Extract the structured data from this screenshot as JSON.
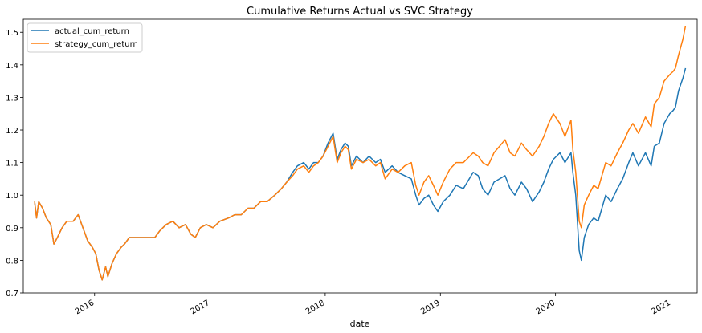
{
  "chart_data": {
    "type": "line",
    "title": "Cumulative Returns Actual vs SVC Strategy",
    "xlabel": "date",
    "ylabel": "",
    "xlim": [
      "2015-05-20",
      "2021-03-25"
    ],
    "ylim": [
      0.7,
      1.54
    ],
    "x_ticks": [
      "2016-01-01",
      "2017-01-01",
      "2018-01-01",
      "2019-01-01",
      "2020-01-01",
      "2021-01-01"
    ],
    "x_tick_labels": [
      "2016",
      "2017",
      "2018",
      "2019",
      "2020",
      "2021"
    ],
    "y_ticks": [
      0.7,
      0.8,
      0.9,
      1.0,
      1.1,
      1.2,
      1.3,
      1.4,
      1.5
    ],
    "y_tick_labels": [
      "0.7",
      "0.8",
      "0.9",
      "1.0",
      "1.1",
      "1.2",
      "1.3",
      "1.4",
      "1.5"
    ],
    "grid": false,
    "legend": "upper left",
    "series": [
      {
        "name": "actual_cum_return",
        "color": "#1f77b4",
        "points": [
          [
            "2015-06-25",
            0.98
          ],
          [
            "2015-07-01",
            0.93
          ],
          [
            "2015-07-08",
            0.98
          ],
          [
            "2015-07-20",
            0.96
          ],
          [
            "2015-08-01",
            0.93
          ],
          [
            "2015-08-15",
            0.91
          ],
          [
            "2015-08-25",
            0.85
          ],
          [
            "2015-09-05",
            0.87
          ],
          [
            "2015-09-20",
            0.9
          ],
          [
            "2015-10-05",
            0.92
          ],
          [
            "2015-10-25",
            0.92
          ],
          [
            "2015-11-10",
            0.94
          ],
          [
            "2015-11-25",
            0.9
          ],
          [
            "2015-12-10",
            0.86
          ],
          [
            "2015-12-25",
            0.84
          ],
          [
            "2016-01-05",
            0.82
          ],
          [
            "2016-01-15",
            0.77
          ],
          [
            "2016-01-25",
            0.74
          ],
          [
            "2016-02-05",
            0.78
          ],
          [
            "2016-02-12",
            0.75
          ],
          [
            "2016-02-25",
            0.79
          ],
          [
            "2016-03-10",
            0.82
          ],
          [
            "2016-03-25",
            0.84
          ],
          [
            "2016-04-05",
            0.85
          ],
          [
            "2016-04-20",
            0.87
          ],
          [
            "2016-07-10",
            0.87
          ],
          [
            "2016-07-25",
            0.89
          ],
          [
            "2016-08-15",
            0.91
          ],
          [
            "2016-09-05",
            0.92
          ],
          [
            "2016-09-25",
            0.9
          ],
          [
            "2016-10-15",
            0.91
          ],
          [
            "2016-11-01",
            0.88
          ],
          [
            "2016-11-15",
            0.87
          ],
          [
            "2016-12-01",
            0.9
          ],
          [
            "2016-12-20",
            0.91
          ],
          [
            "2017-01-10",
            0.9
          ],
          [
            "2017-02-01",
            0.92
          ],
          [
            "2017-03-01",
            0.93
          ],
          [
            "2017-03-20",
            0.94
          ],
          [
            "2017-04-10",
            0.94
          ],
          [
            "2017-05-01",
            0.96
          ],
          [
            "2017-05-20",
            0.96
          ],
          [
            "2017-06-10",
            0.98
          ],
          [
            "2017-07-01",
            0.98
          ],
          [
            "2017-07-25",
            1.0
          ],
          [
            "2017-08-15",
            1.02
          ],
          [
            "2017-09-01",
            1.04
          ],
          [
            "2017-09-20",
            1.07
          ],
          [
            "2017-10-05",
            1.09
          ],
          [
            "2017-10-25",
            1.1
          ],
          [
            "2017-11-10",
            1.08
          ],
          [
            "2017-11-25",
            1.1
          ],
          [
            "2017-12-10",
            1.1
          ],
          [
            "2017-12-25",
            1.12
          ],
          [
            "2018-01-10",
            1.16
          ],
          [
            "2018-01-26",
            1.19
          ],
          [
            "2018-02-08",
            1.11
          ],
          [
            "2018-02-20",
            1.14
          ],
          [
            "2018-03-05",
            1.16
          ],
          [
            "2018-03-15",
            1.15
          ],
          [
            "2018-03-25",
            1.09
          ],
          [
            "2018-04-10",
            1.12
          ],
          [
            "2018-05-01",
            1.1
          ],
          [
            "2018-05-20",
            1.12
          ],
          [
            "2018-06-10",
            1.1
          ],
          [
            "2018-06-25",
            1.11
          ],
          [
            "2018-07-10",
            1.07
          ],
          [
            "2018-08-01",
            1.09
          ],
          [
            "2018-08-20",
            1.07
          ],
          [
            "2018-09-10",
            1.06
          ],
          [
            "2018-10-01",
            1.05
          ],
          [
            "2018-10-15",
            1.0
          ],
          [
            "2018-10-25",
            0.97
          ],
          [
            "2018-11-10",
            0.99
          ],
          [
            "2018-11-25",
            1.0
          ],
          [
            "2018-12-10",
            0.97
          ],
          [
            "2018-12-24",
            0.95
          ],
          [
            "2019-01-10",
            0.98
          ],
          [
            "2019-01-31",
            1.0
          ],
          [
            "2019-02-20",
            1.03
          ],
          [
            "2019-03-15",
            1.02
          ],
          [
            "2019-04-15",
            1.07
          ],
          [
            "2019-05-01",
            1.06
          ],
          [
            "2019-05-15",
            1.02
          ],
          [
            "2019-06-01",
            1.0
          ],
          [
            "2019-06-20",
            1.04
          ],
          [
            "2019-07-25",
            1.06
          ],
          [
            "2019-08-10",
            1.02
          ],
          [
            "2019-08-25",
            1.0
          ],
          [
            "2019-09-15",
            1.04
          ],
          [
            "2019-10-01",
            1.02
          ],
          [
            "2019-10-20",
            0.98
          ],
          [
            "2019-11-10",
            1.01
          ],
          [
            "2019-11-25",
            1.04
          ],
          [
            "2019-12-10",
            1.08
          ],
          [
            "2019-12-25",
            1.11
          ],
          [
            "2020-01-15",
            1.13
          ],
          [
            "2020-01-31",
            1.1
          ],
          [
            "2020-02-19",
            1.13
          ],
          [
            "2020-02-25",
            1.07
          ],
          [
            "2020-03-05",
            1.0
          ],
          [
            "2020-03-16",
            0.83
          ],
          [
            "2020-03-23",
            0.8
          ],
          [
            "2020-04-01",
            0.87
          ],
          [
            "2020-04-15",
            0.91
          ],
          [
            "2020-05-01",
            0.93
          ],
          [
            "2020-05-15",
            0.92
          ],
          [
            "2020-06-08",
            1.0
          ],
          [
            "2020-06-25",
            0.98
          ],
          [
            "2020-07-15",
            1.02
          ],
          [
            "2020-08-01",
            1.05
          ],
          [
            "2020-08-20",
            1.1
          ],
          [
            "2020-09-02",
            1.13
          ],
          [
            "2020-09-20",
            1.09
          ],
          [
            "2020-10-12",
            1.13
          ],
          [
            "2020-10-30",
            1.09
          ],
          [
            "2020-11-09",
            1.15
          ],
          [
            "2020-11-25",
            1.16
          ],
          [
            "2020-12-10",
            1.22
          ],
          [
            "2020-12-28",
            1.25
          ],
          [
            "2021-01-08",
            1.26
          ],
          [
            "2021-01-15",
            1.27
          ],
          [
            "2021-01-25",
            1.32
          ],
          [
            "2021-02-08",
            1.36
          ],
          [
            "2021-02-16",
            1.39
          ]
        ]
      },
      {
        "name": "strategy_cum_return",
        "color": "#ff7f0e",
        "points": [
          [
            "2015-06-25",
            0.98
          ],
          [
            "2015-07-01",
            0.93
          ],
          [
            "2015-07-08",
            0.98
          ],
          [
            "2015-07-20",
            0.96
          ],
          [
            "2015-08-01",
            0.93
          ],
          [
            "2015-08-15",
            0.91
          ],
          [
            "2015-08-25",
            0.85
          ],
          [
            "2015-09-05",
            0.87
          ],
          [
            "2015-09-20",
            0.9
          ],
          [
            "2015-10-05",
            0.92
          ],
          [
            "2015-10-25",
            0.92
          ],
          [
            "2015-11-10",
            0.94
          ],
          [
            "2015-11-25",
            0.9
          ],
          [
            "2015-12-10",
            0.86
          ],
          [
            "2015-12-25",
            0.84
          ],
          [
            "2016-01-05",
            0.82
          ],
          [
            "2016-01-15",
            0.77
          ],
          [
            "2016-01-25",
            0.74
          ],
          [
            "2016-02-05",
            0.78
          ],
          [
            "2016-02-12",
            0.75
          ],
          [
            "2016-02-25",
            0.79
          ],
          [
            "2016-03-10",
            0.82
          ],
          [
            "2016-03-25",
            0.84
          ],
          [
            "2016-04-05",
            0.85
          ],
          [
            "2016-04-20",
            0.87
          ],
          [
            "2016-07-10",
            0.87
          ],
          [
            "2016-07-25",
            0.89
          ],
          [
            "2016-08-15",
            0.91
          ],
          [
            "2016-09-05",
            0.92
          ],
          [
            "2016-09-25",
            0.9
          ],
          [
            "2016-10-15",
            0.91
          ],
          [
            "2016-11-01",
            0.88
          ],
          [
            "2016-11-15",
            0.87
          ],
          [
            "2016-12-01",
            0.9
          ],
          [
            "2016-12-20",
            0.91
          ],
          [
            "2017-01-10",
            0.9
          ],
          [
            "2017-02-01",
            0.92
          ],
          [
            "2017-03-01",
            0.93
          ],
          [
            "2017-03-20",
            0.94
          ],
          [
            "2017-04-10",
            0.94
          ],
          [
            "2017-05-01",
            0.96
          ],
          [
            "2017-05-20",
            0.96
          ],
          [
            "2017-06-10",
            0.98
          ],
          [
            "2017-07-01",
            0.98
          ],
          [
            "2017-07-25",
            1.0
          ],
          [
            "2017-08-15",
            1.02
          ],
          [
            "2017-09-01",
            1.04
          ],
          [
            "2017-09-20",
            1.06
          ],
          [
            "2017-10-05",
            1.08
          ],
          [
            "2017-10-25",
            1.09
          ],
          [
            "2017-11-10",
            1.07
          ],
          [
            "2017-11-25",
            1.09
          ],
          [
            "2017-12-10",
            1.1
          ],
          [
            "2017-12-25",
            1.12
          ],
          [
            "2018-01-10",
            1.15
          ],
          [
            "2018-01-26",
            1.18
          ],
          [
            "2018-02-08",
            1.1
          ],
          [
            "2018-02-20",
            1.13
          ],
          [
            "2018-03-05",
            1.15
          ],
          [
            "2018-03-15",
            1.14
          ],
          [
            "2018-03-25",
            1.08
          ],
          [
            "2018-04-10",
            1.11
          ],
          [
            "2018-05-01",
            1.1
          ],
          [
            "2018-05-20",
            1.11
          ],
          [
            "2018-06-10",
            1.09
          ],
          [
            "2018-06-25",
            1.1
          ],
          [
            "2018-07-10",
            1.05
          ],
          [
            "2018-08-01",
            1.08
          ],
          [
            "2018-08-20",
            1.07
          ],
          [
            "2018-09-10",
            1.09
          ],
          [
            "2018-10-01",
            1.1
          ],
          [
            "2018-10-15",
            1.03
          ],
          [
            "2018-10-25",
            1.0
          ],
          [
            "2018-11-10",
            1.04
          ],
          [
            "2018-11-25",
            1.06
          ],
          [
            "2018-12-10",
            1.03
          ],
          [
            "2018-12-24",
            1.0
          ],
          [
            "2019-01-10",
            1.04
          ],
          [
            "2019-01-31",
            1.08
          ],
          [
            "2019-02-20",
            1.1
          ],
          [
            "2019-03-15",
            1.1
          ],
          [
            "2019-04-15",
            1.13
          ],
          [
            "2019-05-01",
            1.12
          ],
          [
            "2019-05-15",
            1.1
          ],
          [
            "2019-06-01",
            1.09
          ],
          [
            "2019-06-20",
            1.13
          ],
          [
            "2019-07-25",
            1.17
          ],
          [
            "2019-08-10",
            1.13
          ],
          [
            "2019-08-25",
            1.12
          ],
          [
            "2019-09-15",
            1.16
          ],
          [
            "2019-10-01",
            1.14
          ],
          [
            "2019-10-20",
            1.12
          ],
          [
            "2019-11-10",
            1.15
          ],
          [
            "2019-11-25",
            1.18
          ],
          [
            "2019-12-10",
            1.22
          ],
          [
            "2019-12-25",
            1.25
          ],
          [
            "2020-01-15",
            1.22
          ],
          [
            "2020-01-31",
            1.18
          ],
          [
            "2020-02-19",
            1.23
          ],
          [
            "2020-02-25",
            1.14
          ],
          [
            "2020-03-05",
            1.07
          ],
          [
            "2020-03-16",
            0.92
          ],
          [
            "2020-03-23",
            0.9
          ],
          [
            "2020-04-01",
            0.97
          ],
          [
            "2020-04-15",
            1.0
          ],
          [
            "2020-05-01",
            1.03
          ],
          [
            "2020-05-15",
            1.02
          ],
          [
            "2020-06-08",
            1.1
          ],
          [
            "2020-06-25",
            1.09
          ],
          [
            "2020-07-15",
            1.13
          ],
          [
            "2020-08-01",
            1.16
          ],
          [
            "2020-08-20",
            1.2
          ],
          [
            "2020-09-02",
            1.22
          ],
          [
            "2020-09-20",
            1.19
          ],
          [
            "2020-10-12",
            1.24
          ],
          [
            "2020-10-30",
            1.21
          ],
          [
            "2020-11-09",
            1.28
          ],
          [
            "2020-11-25",
            1.3
          ],
          [
            "2020-12-10",
            1.35
          ],
          [
            "2020-12-28",
            1.37
          ],
          [
            "2021-01-08",
            1.38
          ],
          [
            "2021-01-15",
            1.39
          ],
          [
            "2021-01-25",
            1.43
          ],
          [
            "2021-02-08",
            1.48
          ],
          [
            "2021-02-16",
            1.52
          ]
        ]
      }
    ]
  }
}
